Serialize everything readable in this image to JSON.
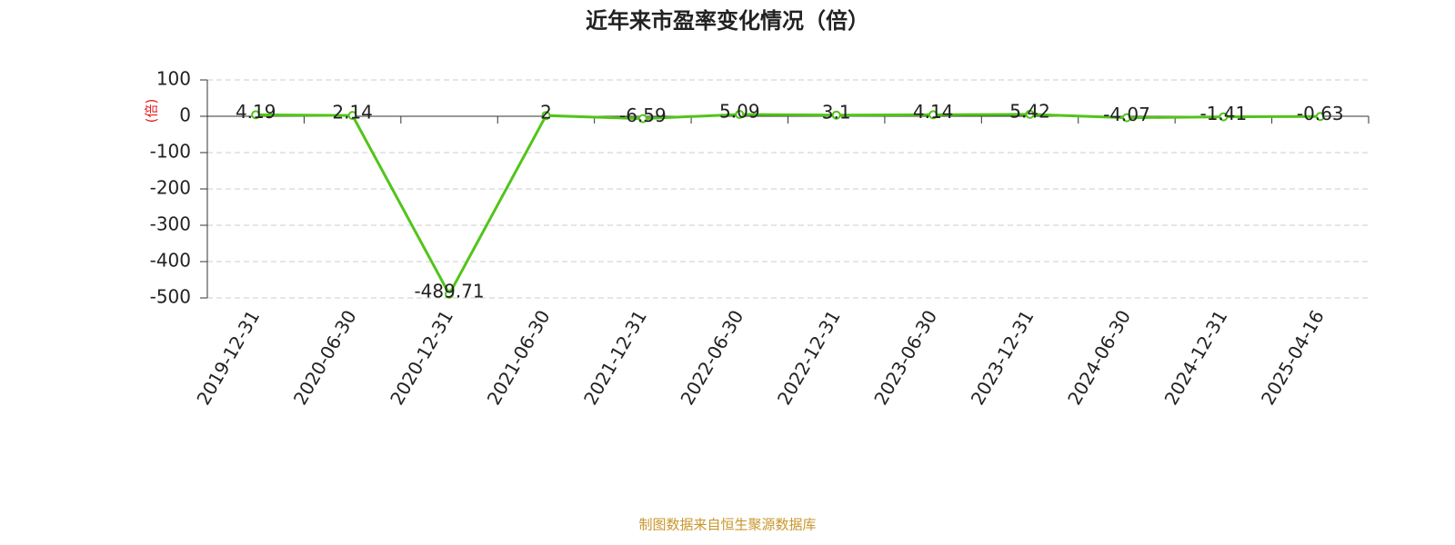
{
  "chart_data": {
    "type": "line",
    "title": "近年来市盈率变化情况（倍）",
    "y_label": "(倍)",
    "source": "制图数据来自恒生聚源数据库",
    "categories": [
      "2019-12-31",
      "2020-06-30",
      "2020-12-31",
      "2021-06-30",
      "2021-12-31",
      "2022-06-30",
      "2022-12-31",
      "2023-06-30",
      "2023-12-31",
      "2024-06-30",
      "2024-12-31",
      "2025-04-16"
    ],
    "values": [
      4.19,
      2.14,
      -489.71,
      2,
      -6.59,
      5.09,
      3.1,
      4.14,
      5.42,
      -4.07,
      -1.41,
      -0.63
    ],
    "color": "#52c41a",
    "ylim": [
      -500,
      100
    ],
    "yticks": [
      -500,
      -400,
      -300,
      -200,
      -100,
      0,
      100
    ],
    "grid": true
  }
}
